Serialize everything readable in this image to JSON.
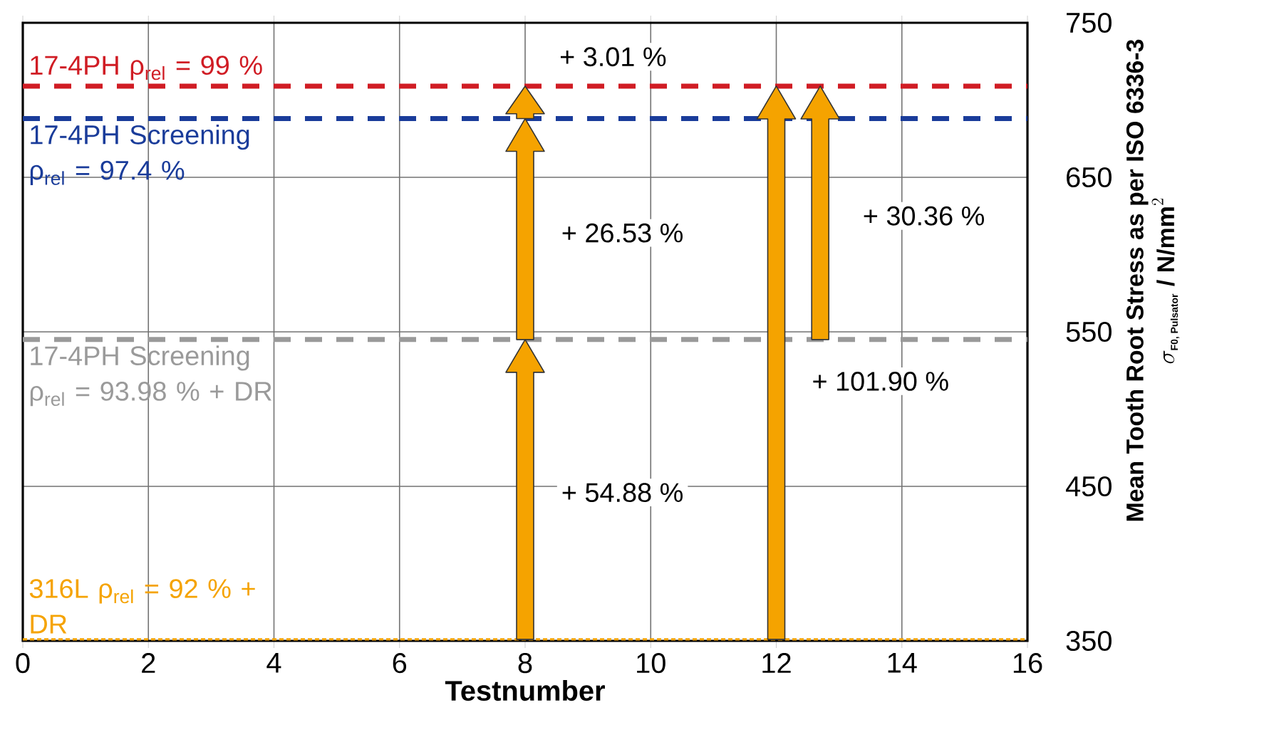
{
  "chart_data": {
    "type": "line",
    "x": [
      0,
      16
    ],
    "series": [
      {
        "name": "17-4PH ρ$_{rel}$ =  99 %",
        "color": "#d01c24",
        "line_style": "dashed",
        "values": [
          709,
          709
        ]
      },
      {
        "name": "17-4PH Screening ρ$_{rel}$ = 97.4 %",
        "color": "#1a3c9a",
        "line_style": "dashed",
        "values": [
          688,
          688
        ]
      },
      {
        "name": "17-4PH Screening ρ$_{rel}$ = 93.98 % + DR",
        "color": "#9a9a9a",
        "line_style": "dashed",
        "values": [
          545,
          545
        ]
      },
      {
        "name": "316L ρ$_{rel}$ = 92 % + DR",
        "color": "#f5a300",
        "line_style": "dotted",
        "values": [
          351,
          351
        ]
      }
    ],
    "xlabel": "Testnumber",
    "ylabel": "\\begin{array}{c}\\mbox{Mean Tooth Root Stress as per ISO 6336-3}\\\\ \\sigma_{\\mbox{\\scriptsize F0, Pulsator}}\\ \\mbox{/ N/mm}^{2}\\end{array}",
    "xlim": [
      0,
      16
    ],
    "xticks": [
      0,
      2,
      4,
      6,
      8,
      10,
      12,
      14,
      16
    ],
    "ylim": [
      350,
      750
    ],
    "yticks": [
      350,
      450,
      550,
      650,
      750
    ],
    "grid": true,
    "legend": false,
    "marker": "none",
    "annotations": [
      "+ 3.01 %",
      "+ 26.53 %",
      "+ 30.36 %",
      "+ 101.90 %",
      "+ 54.88 %"
    ]
  }
}
